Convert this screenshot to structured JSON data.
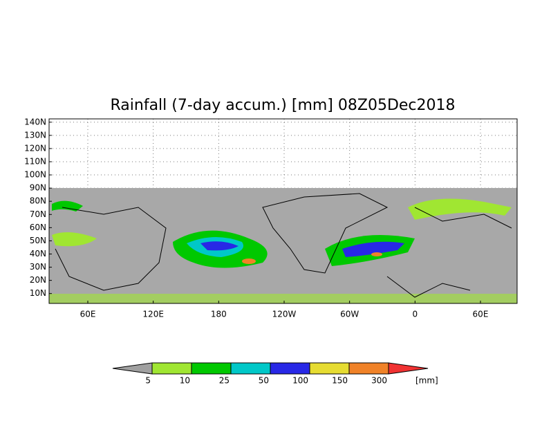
{
  "map": {
    "title": "Rainfall (7-day accum.) [mm] 08Z05Dec2018",
    "lat_ticks": [
      {
        "value": 140,
        "label": "140N"
      },
      {
        "value": 130,
        "label": "130N"
      },
      {
        "value": 120,
        "label": "120N"
      },
      {
        "value": 110,
        "label": "110N"
      },
      {
        "value": 100,
        "label": "100N"
      },
      {
        "value": 90,
        "label": "90N"
      },
      {
        "value": 80,
        "label": "80N"
      },
      {
        "value": 70,
        "label": "70N"
      },
      {
        "value": 60,
        "label": "60N"
      },
      {
        "value": 50,
        "label": "50N"
      },
      {
        "value": 40,
        "label": "40N"
      },
      {
        "value": 30,
        "label": "30N"
      },
      {
        "value": 20,
        "label": "20N"
      },
      {
        "value": 10,
        "label": "10N"
      }
    ],
    "lat_lim": [
      2.5,
      142.5
    ],
    "lon_ticks": [
      {
        "value": 60,
        "label": "60E"
      },
      {
        "value": 120,
        "label": "120E"
      },
      {
        "value": 180,
        "label": "180"
      },
      {
        "value": 240,
        "label": "120W"
      },
      {
        "value": 300,
        "label": "60W"
      },
      {
        "value": 360,
        "label": "0"
      },
      {
        "value": 420,
        "label": "60E"
      }
    ],
    "lon_lim": [
      24.5,
      453.6
    ],
    "colorbar": {
      "levels": [
        5,
        10,
        25,
        50,
        100,
        150,
        300
      ],
      "colors": [
        "#a0a0a0",
        "#a0e632",
        "#00c800",
        "#00c8c8",
        "#2828e6",
        "#e6dc32",
        "#f08228",
        "#f03232"
      ],
      "unit": "[mm]"
    }
  }
}
